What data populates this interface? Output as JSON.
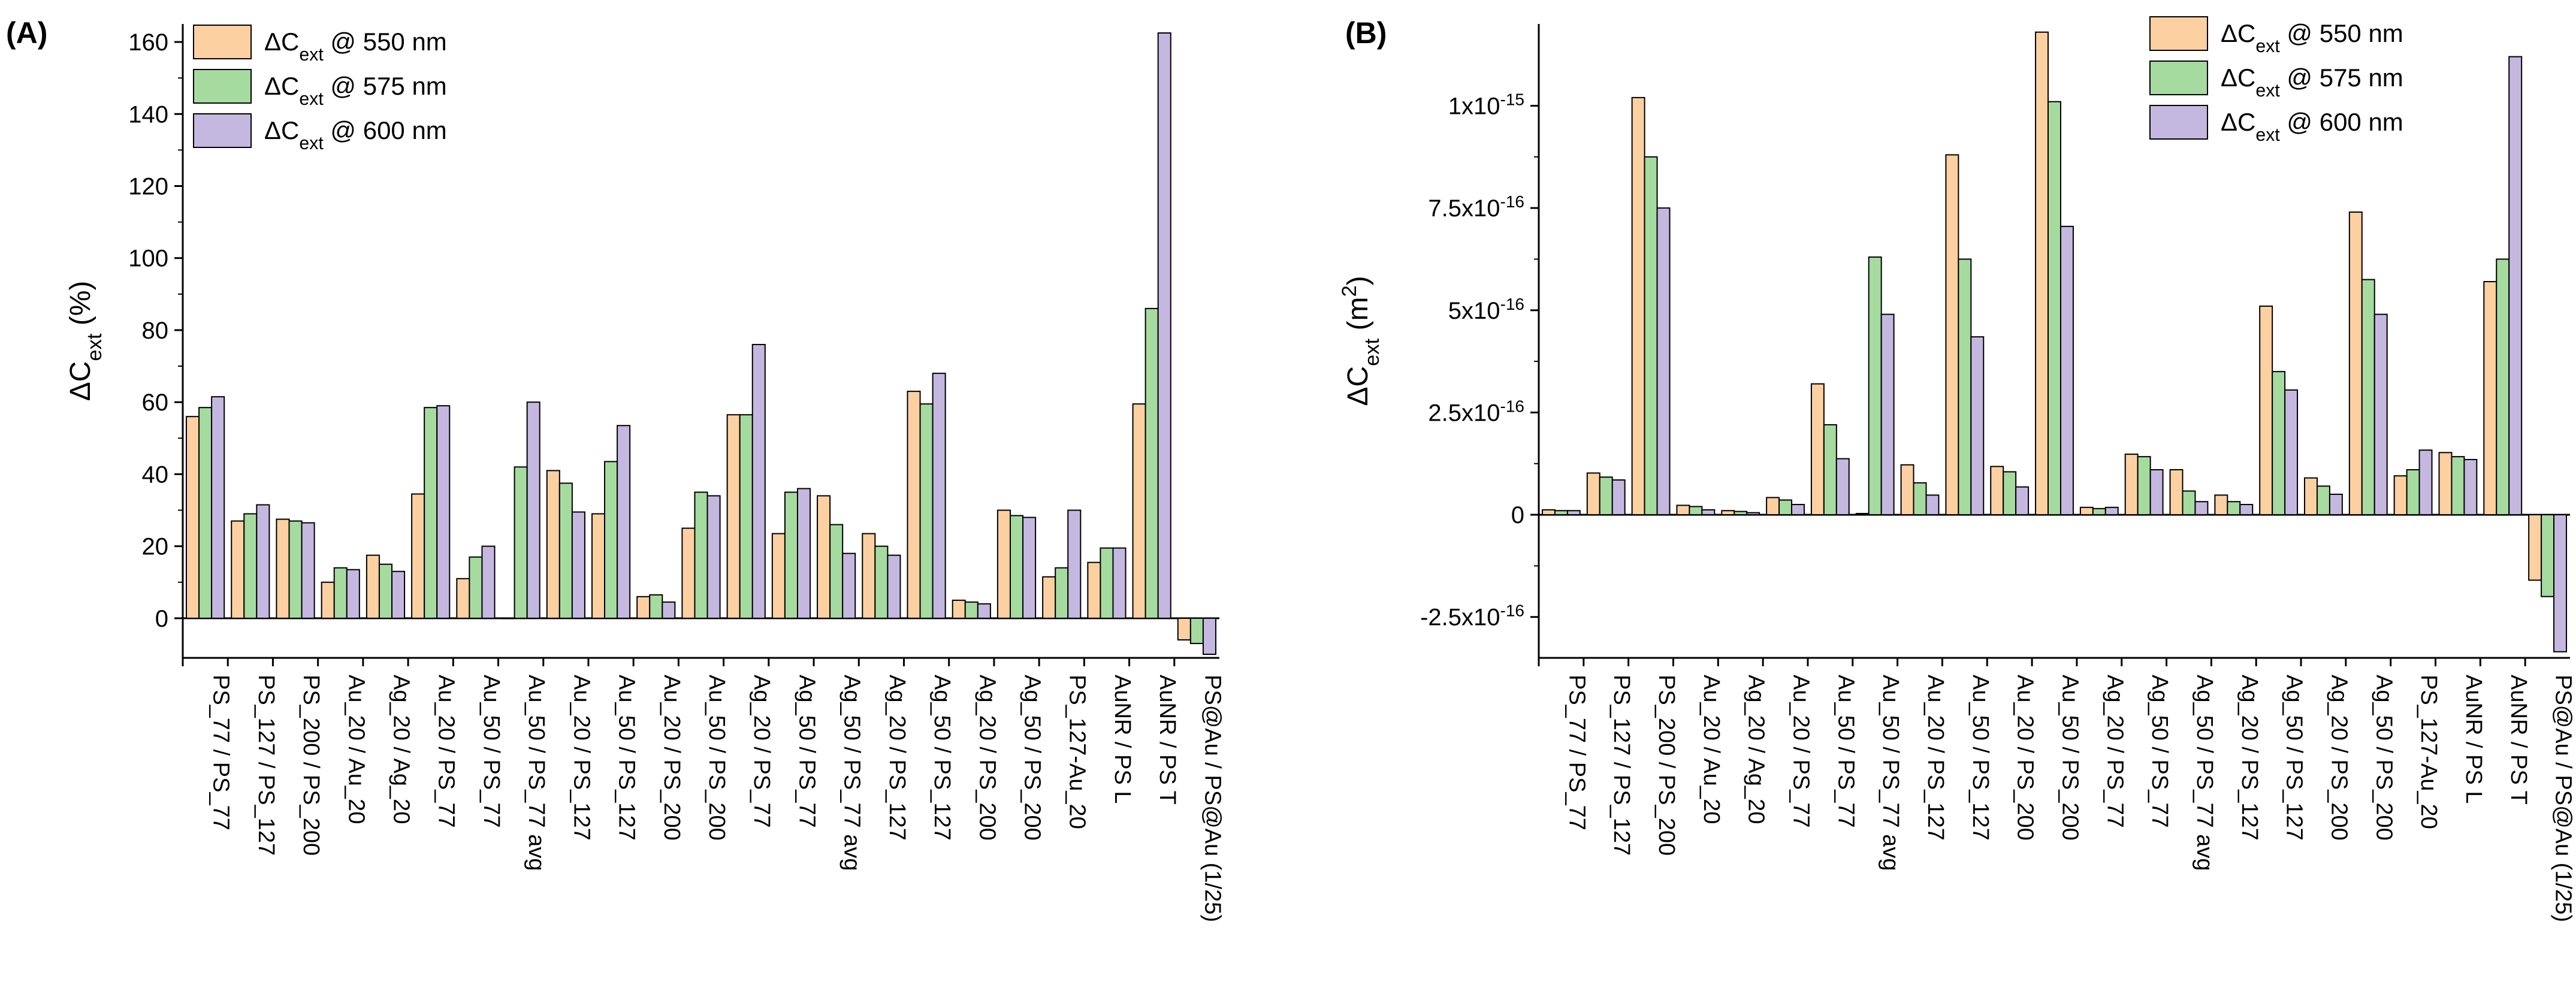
{
  "colors": {
    "550": "#fdd0a2",
    "575": "#a6dba0",
    "600": "#c5b8e0",
    "stroke": "#000000"
  },
  "categories": [
    "PS_77 / PS_77",
    "PS_127 / PS_127",
    "PS_200 / PS_200",
    "Au_20 / Au_20",
    "Ag_20 / Ag_20",
    "Au_20 / PS_77",
    "Au_50 / PS_77",
    "Au_50 / PS_77 avg",
    "Au_20 / PS_127",
    "Au_50 / PS_127",
    "Au_20 / PS_200",
    "Au_50 / PS_200",
    "Ag_20 / PS_77",
    "Ag_50 / PS_77",
    "Ag_50 / PS_77 avg",
    "Ag_20 / PS_127",
    "Ag_50 / PS_127",
    "Ag_20 / PS_200",
    "Ag_50 / PS_200",
    "PS_127-Au_20",
    "AuNR / PS L",
    "AuNR / PS T",
    "PS@Au / PS@Au (1/25)"
  ],
  "chart_data": [
    {
      "type": "bar",
      "panel_label": "(A)",
      "ylabel": "ΔCext (%)",
      "ylim": [
        -11,
        165
      ],
      "yticks": [
        0,
        20,
        40,
        60,
        80,
        100,
        120,
        140,
        160
      ],
      "ytick_labels": [
        "0",
        "20",
        "40",
        "60",
        "80",
        "100",
        "120",
        "140",
        "160"
      ],
      "legend": [
        "ΔCext @ 550 nm",
        "ΔCext @ 575 nm",
        "ΔCext @ 600 nm"
      ],
      "legend_position": "top-left",
      "series": [
        {
          "name": "ΔCext @ 550 nm",
          "key": "550",
          "values": [
            56,
            27,
            27.5,
            10,
            17.5,
            34.5,
            11,
            0,
            41,
            29,
            6,
            25,
            56.5,
            23.5,
            34,
            23.5,
            63,
            5,
            30,
            11.5,
            15.5,
            59.5,
            -6
          ]
        },
        {
          "name": "ΔCext @ 575 nm",
          "key": "575",
          "values": [
            58.5,
            29,
            27,
            14,
            15,
            58.5,
            17,
            42,
            37.5,
            43.5,
            6.5,
            35,
            56.5,
            35,
            26,
            20,
            59.5,
            4.5,
            28.5,
            14,
            19.5,
            86,
            -7
          ]
        },
        {
          "name": "ΔCext @ 600 nm",
          "key": "600",
          "values": [
            61.5,
            31.5,
            26.5,
            13.5,
            13,
            59,
            20,
            60,
            29.5,
            53.5,
            4.5,
            34,
            76,
            36,
            18,
            17.5,
            68,
            4,
            28,
            30,
            19.5,
            162.5,
            -10
          ]
        }
      ]
    },
    {
      "type": "bar",
      "panel_label": "(B)",
      "ylabel": "ΔCext (m2)",
      "ylim": [
        -3.5e-16,
        1.2e-15
      ],
      "yticks": [
        -2.5e-16,
        0,
        2.5e-16,
        5e-16,
        7.5e-16,
        1e-15
      ],
      "ytick_labels": [
        {
          "mantissa": "-2.5x10",
          "exp": "-16"
        },
        {
          "mantissa": "0",
          "exp": ""
        },
        {
          "mantissa": "2.5x10",
          "exp": "-16"
        },
        {
          "mantissa": "5x10",
          "exp": "-16"
        },
        {
          "mantissa": "7.5x10",
          "exp": "-16"
        },
        {
          "mantissa": "1x10",
          "exp": "-15"
        }
      ],
      "legend": [
        "ΔCext @ 550 nm",
        "ΔCext @ 575 nm",
        "ΔCext @ 600 nm"
      ],
      "legend_position": "top-right",
      "series": [
        {
          "name": "ΔCext @ 550 nm",
          "key": "550",
          "values": [
            1.2e-17,
            1.02e-16,
            1.02e-15,
            2.3e-17,
            1e-17,
            4.2e-17,
            3.2e-16,
            3e-18,
            1.22e-16,
            8.8e-16,
            1.18e-16,
            1.18e-15,
            1.8e-17,
            1.48e-16,
            1.1e-16,
            4.8e-17,
            5.1e-16,
            9e-17,
            7.4e-16,
            9.5e-17,
            1.52e-16,
            5.7e-16,
            -1.6e-16
          ]
        },
        {
          "name": "ΔCext @ 575 nm",
          "key": "575",
          "values": [
            1e-17,
            9.2e-17,
            8.75e-16,
            2e-17,
            8e-18,
            3.6e-17,
            2.2e-16,
            6.3e-16,
            7.8e-17,
            6.25e-16,
            1.05e-16,
            1.01e-15,
            1.5e-17,
            1.42e-16,
            5.8e-17,
            3.2e-17,
            3.5e-16,
            7e-17,
            5.75e-16,
            1.1e-16,
            1.42e-16,
            6.25e-16,
            -2e-16
          ]
        },
        {
          "name": "ΔCext @ 600 nm",
          "key": "600",
          "values": [
            1e-17,
            8.5e-17,
            7.5e-16,
            1.2e-17,
            5e-18,
            2.5e-17,
            1.37e-16,
            4.9e-16,
            4.8e-17,
            4.35e-16,
            6.8e-17,
            7.05e-16,
            1.8e-17,
            1.1e-16,
            3.2e-17,
            2.5e-17,
            3.05e-16,
            5e-17,
            4.9e-16,
            1.58e-16,
            1.35e-16,
            1.12e-15,
            -3.35e-16
          ]
        }
      ]
    }
  ]
}
